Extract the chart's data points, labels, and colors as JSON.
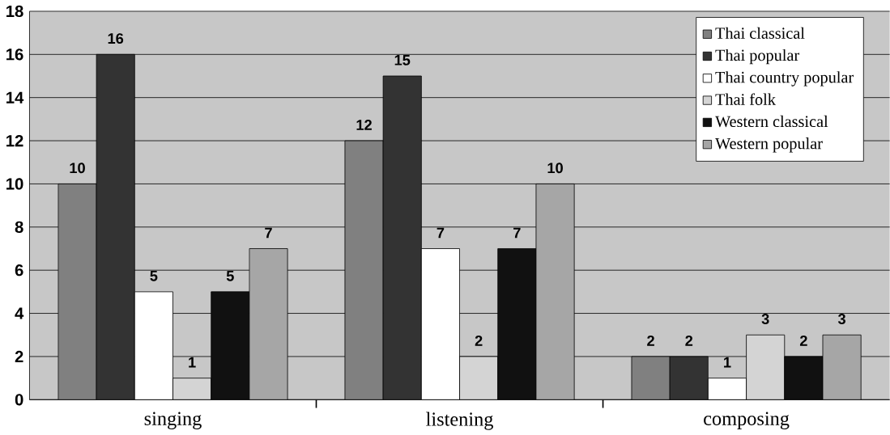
{
  "chart_data": {
    "type": "bar",
    "categories": [
      "singing",
      "listening",
      "composing"
    ],
    "series": [
      {
        "name": "Thai classical",
        "color": "#808080",
        "values": [
          10,
          12,
          2
        ]
      },
      {
        "name": "Thai popular",
        "color": "#333333",
        "values": [
          16,
          15,
          2
        ]
      },
      {
        "name": "Thai country popular",
        "color": "#ffffff",
        "values": [
          5,
          7,
          1
        ]
      },
      {
        "name": "Thai folk",
        "color": "#d4d4d4",
        "values": [
          1,
          2,
          3
        ]
      },
      {
        "name": "Western classical",
        "color": "#111111",
        "values": [
          5,
          7,
          2
        ]
      },
      {
        "name": "Western popular",
        "color": "#a6a6a6",
        "values": [
          7,
          10,
          3
        ]
      }
    ],
    "ylim": [
      0,
      18
    ],
    "yticks": [
      0,
      2,
      4,
      6,
      8,
      10,
      12,
      14,
      16,
      18
    ],
    "grid": "y",
    "legend": "top right",
    "data_labels": true
  }
}
